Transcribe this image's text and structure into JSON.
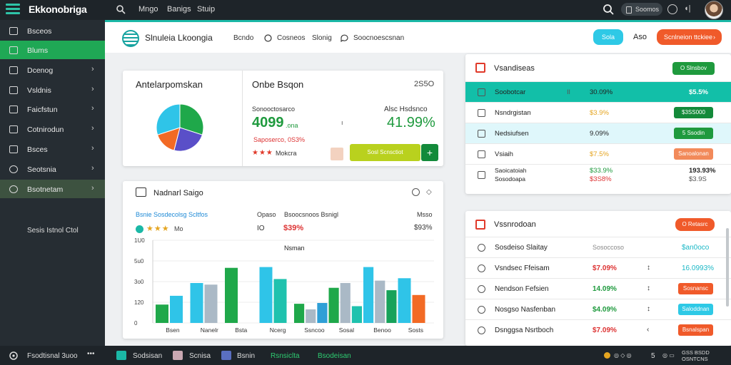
{
  "topbar": {
    "brand": "Ekkonobriga",
    "nav": [
      "Mngo",
      "Banigs",
      "Stuip"
    ],
    "pill": "Soomos"
  },
  "sidebar": {
    "items": [
      {
        "label": "Bsceos",
        "chev": false
      },
      {
        "label": "Blums",
        "chev": false
      },
      {
        "label": "Dcenog",
        "chev": true
      },
      {
        "label": "Vsldnis",
        "chev": true
      },
      {
        "label": "Faicfstun",
        "chev": true
      },
      {
        "label": "Cotnirodun",
        "chev": true
      },
      {
        "label": "Bsces",
        "chev": true
      },
      {
        "label": "Seotsnia",
        "chev": true
      },
      {
        "label": "Bsotnetam",
        "chev": true
      }
    ],
    "extra": "Sesis Istnol Ctol"
  },
  "bottombar": {
    "left": "Fsodtisnal 3uoo",
    "items": [
      "Sodsisan",
      "Scnisa",
      "Bsnin",
      "Rsnsiclta",
      "Bsodeisan"
    ],
    "right_num": "5",
    "right_label1": "GSS BSDD",
    "right_label2": "OSNTCNS"
  },
  "header": {
    "title": "Slnuleia Lkoongia",
    "links": [
      "Bcndo",
      "Cosneos",
      "Slonig",
      "Soocnoescsnan"
    ],
    "btn1": "Sola",
    "num": "Aso",
    "btn2": "Scnlneion ttckiee"
  },
  "cardA": {
    "title": "Antelarpomskan",
    "title2": "Onbe Bsqon",
    "num": "2S5O",
    "sub1": "Sonooctosarco",
    "big1": "4099",
    "big1_small": ".ona",
    "red": "Saposerco, 0S3%",
    "stars": "★★★",
    "stars_label": "Mokcra",
    "sub2": "Alsc Hsdsnco",
    "big2": "41.99%",
    "bar_label": "Sosl Scnsctiot"
  },
  "pie": {
    "slices": [
      {
        "value": 30,
        "color": "#1fa84a"
      },
      {
        "value": 24,
        "color": "#5a4fc8"
      },
      {
        "value": 16,
        "color": "#f26a25"
      },
      {
        "value": 30,
        "color": "#2fc4e8"
      }
    ]
  },
  "cardB": {
    "title": "Nadnarl Saigo",
    "sub": [
      "Bsnie Sosdecolsg Scltfos",
      "Opaso",
      "Bsoocsnoos Bsnigl",
      "Msso"
    ],
    "stars": "★★★",
    "star_label": "Mo",
    "io": "IO",
    "red": "$39%",
    "pct": "$93%"
  },
  "chart_data": {
    "type": "bar",
    "title": "Nsman",
    "yticks": [
      "1U0",
      "5u0",
      "3o0",
      "120",
      "0"
    ],
    "categories": [
      "Bsen",
      "Nanelr",
      "Bsta",
      "Ncerg",
      "Ssncoo",
      "Sosal",
      "Benoo",
      "Sosts"
    ],
    "ylim": [
      0,
      1
    ],
    "series": [
      {
        "color": "#1fa84a",
        "values": [
          0.23,
          0.0,
          0.69,
          0.0,
          0.24,
          0.44,
          0.0,
          0.0
        ]
      },
      {
        "color": "#2fc4e8",
        "values": [
          0.34,
          0.5,
          0.0,
          0.7,
          0.0,
          0.0,
          0.7,
          0.56
        ]
      },
      {
        "color": "#aab9c6",
        "values": [
          0.0,
          0.48,
          0.0,
          0.0,
          0.17,
          0.5,
          0.53,
          0.0
        ]
      },
      {
        "color": "#1fc2ae",
        "values": [
          0.0,
          0.0,
          0.0,
          0.55,
          0.0,
          0.21,
          0.0,
          0.0
        ]
      },
      {
        "color": "#2f9fd6",
        "values": [
          0.0,
          0.0,
          0.0,
          0.0,
          0.25,
          0.0,
          0.0,
          0.0
        ]
      },
      {
        "color": "#17a25a",
        "values": [
          0.0,
          0.0,
          0.0,
          0.0,
          0.0,
          0.0,
          0.41,
          0.0
        ]
      },
      {
        "color": "#f26a25",
        "values": [
          0.0,
          0.0,
          0.0,
          0.0,
          0.0,
          0.0,
          0.0,
          0.35
        ]
      }
    ]
  },
  "cardC": {
    "title": "Vsandiseas",
    "btn": "O Slnsbov",
    "rows": [
      {
        "label": "Soobotcar",
        "mid": "Il",
        "val": "30.09%",
        "val_color": "#222",
        "right": "$5.5%",
        "right_kind": "text",
        "right_color": "#fff",
        "bg": "#12bfa8"
      },
      {
        "label": "Nsndrgistan",
        "mid": "",
        "val": "$3.9%",
        "val_color": "#e5a520",
        "right": "$3SS000",
        "right_kind": "btn",
        "right_color": "#138a3a",
        "bg": "#ffffff"
      },
      {
        "label": "Nedsiufsen",
        "mid": "",
        "val": "9.09%",
        "val_color": "#222",
        "right": "5 Ssodin",
        "right_kind": "btn",
        "right_color": "#1f9a3e",
        "bg": "#dff7fb"
      },
      {
        "label": "Vsiaih",
        "mid": "",
        "val": "$7.5%",
        "val_color": "#e5a520",
        "right": "Sanoalonan",
        "right_kind": "btn",
        "right_color": "#f28a5a",
        "bg": "#ffffff"
      },
      {
        "label": "Saoicatoiah",
        "label2": "Sosodoapa",
        "mid": "",
        "val": "$33.9%",
        "val2": "$3S8%",
        "val_color": "#1f9a3e",
        "right": "193.93%",
        "right2": "$3.9S",
        "right_kind": "text",
        "right_color": "#222",
        "bg": "#ffffff"
      }
    ]
  },
  "cardD": {
    "title": "Vssnrodoan",
    "btn": "O Retasrc",
    "rows": [
      {
        "label": "Sosdeiso Slaitay",
        "val": "Sosoccoso",
        "val_color": "#888",
        "chev": "",
        "right": "$an0oco",
        "right_kind": "text",
        "right_color": "#1bb8c6"
      },
      {
        "label": "Vsndsec Ffeisam",
        "val": "$7.09%",
        "val_color": "#d33",
        "chev": "↕",
        "right": "16.0993%",
        "right_kind": "text",
        "right_color": "#1bb8c6"
      },
      {
        "label": "Nendson Fefsien",
        "val": "14.09%",
        "val_color": "#1f9a3e",
        "chev": "↕",
        "right": "Sosnansc",
        "right_kind": "btn",
        "right_color": "#f05a2a"
      },
      {
        "label": "Nosgso Nasfenban",
        "val": "$4.09%",
        "val_color": "#1f9a3e",
        "chev": "↕",
        "right": "Saloddnan",
        "right_kind": "btn",
        "right_color": "#2ec9e6"
      },
      {
        "label": "Dsnggsa Nsrtboch",
        "val": "$7.09%",
        "val_color": "#d33",
        "chev": "‹",
        "right": "Bsnalspan",
        "right_kind": "btn",
        "right_color": "#f05a2a"
      }
    ]
  }
}
